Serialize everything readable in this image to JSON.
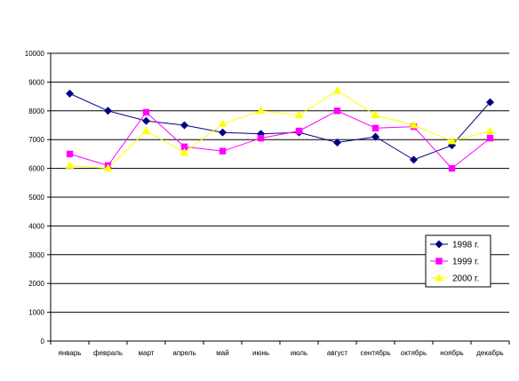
{
  "chart_data": {
    "type": "line",
    "title": "",
    "xlabel": "",
    "ylabel": "",
    "categories": [
      "январь",
      "февраль",
      "март",
      "апрель",
      "май",
      "июнь",
      "июль",
      "август",
      "сентябрь",
      "октябрь",
      "ноябрь",
      "декабрь"
    ],
    "ylim": [
      0,
      10000
    ],
    "yticks": [
      0,
      1000,
      2000,
      3000,
      4000,
      5000,
      6000,
      7000,
      8000,
      9000,
      10000
    ],
    "grid": true,
    "legend_position": "right",
    "series": [
      {
        "name": "1998 г.",
        "color": "#000080",
        "marker": "diamond",
        "values": [
          8600,
          8000,
          7650,
          7500,
          7250,
          7200,
          7250,
          6900,
          7100,
          6300,
          6800,
          8300
        ]
      },
      {
        "name": "1999 г.",
        "color": "#ff00ff",
        "marker": "square",
        "values": [
          6500,
          6100,
          7950,
          6750,
          6600,
          7050,
          7300,
          8000,
          7400,
          7450,
          6000,
          7050
        ]
      },
      {
        "name": "2000 г.",
        "color": "#ffff00",
        "marker": "triangle",
        "values": [
          6100,
          6000,
          7300,
          6550,
          7550,
          8000,
          7850,
          8700,
          7850,
          7500,
          6950,
          7300
        ]
      }
    ]
  }
}
